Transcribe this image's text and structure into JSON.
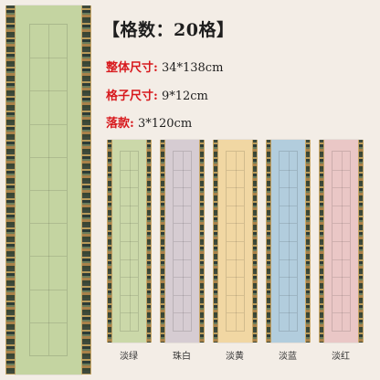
{
  "header": {
    "title": "【格数：20格】"
  },
  "specs": [
    {
      "label": "整体尺寸:",
      "value": "34*138cm"
    },
    {
      "label": "格子尺寸:",
      "value": "9*12cm"
    },
    {
      "label": "落款:",
      "value": "3*120cm"
    }
  ],
  "variants": [
    {
      "label": "淡绿",
      "paper_color": "#cbd8a9"
    },
    {
      "label": "珠白",
      "paper_color": "#d6ccd2"
    },
    {
      "label": "淡黄",
      "paper_color": "#f1d7a3"
    },
    {
      "label": "淡蓝",
      "paper_color": "#b2cddd"
    },
    {
      "label": "淡红",
      "paper_color": "#eac7c6"
    }
  ],
  "main_scroll": {
    "paper_color": "#c4d4a1"
  },
  "colors": {
    "spec_label": "#d8191d",
    "brocade_border": "#3e4a3c"
  }
}
